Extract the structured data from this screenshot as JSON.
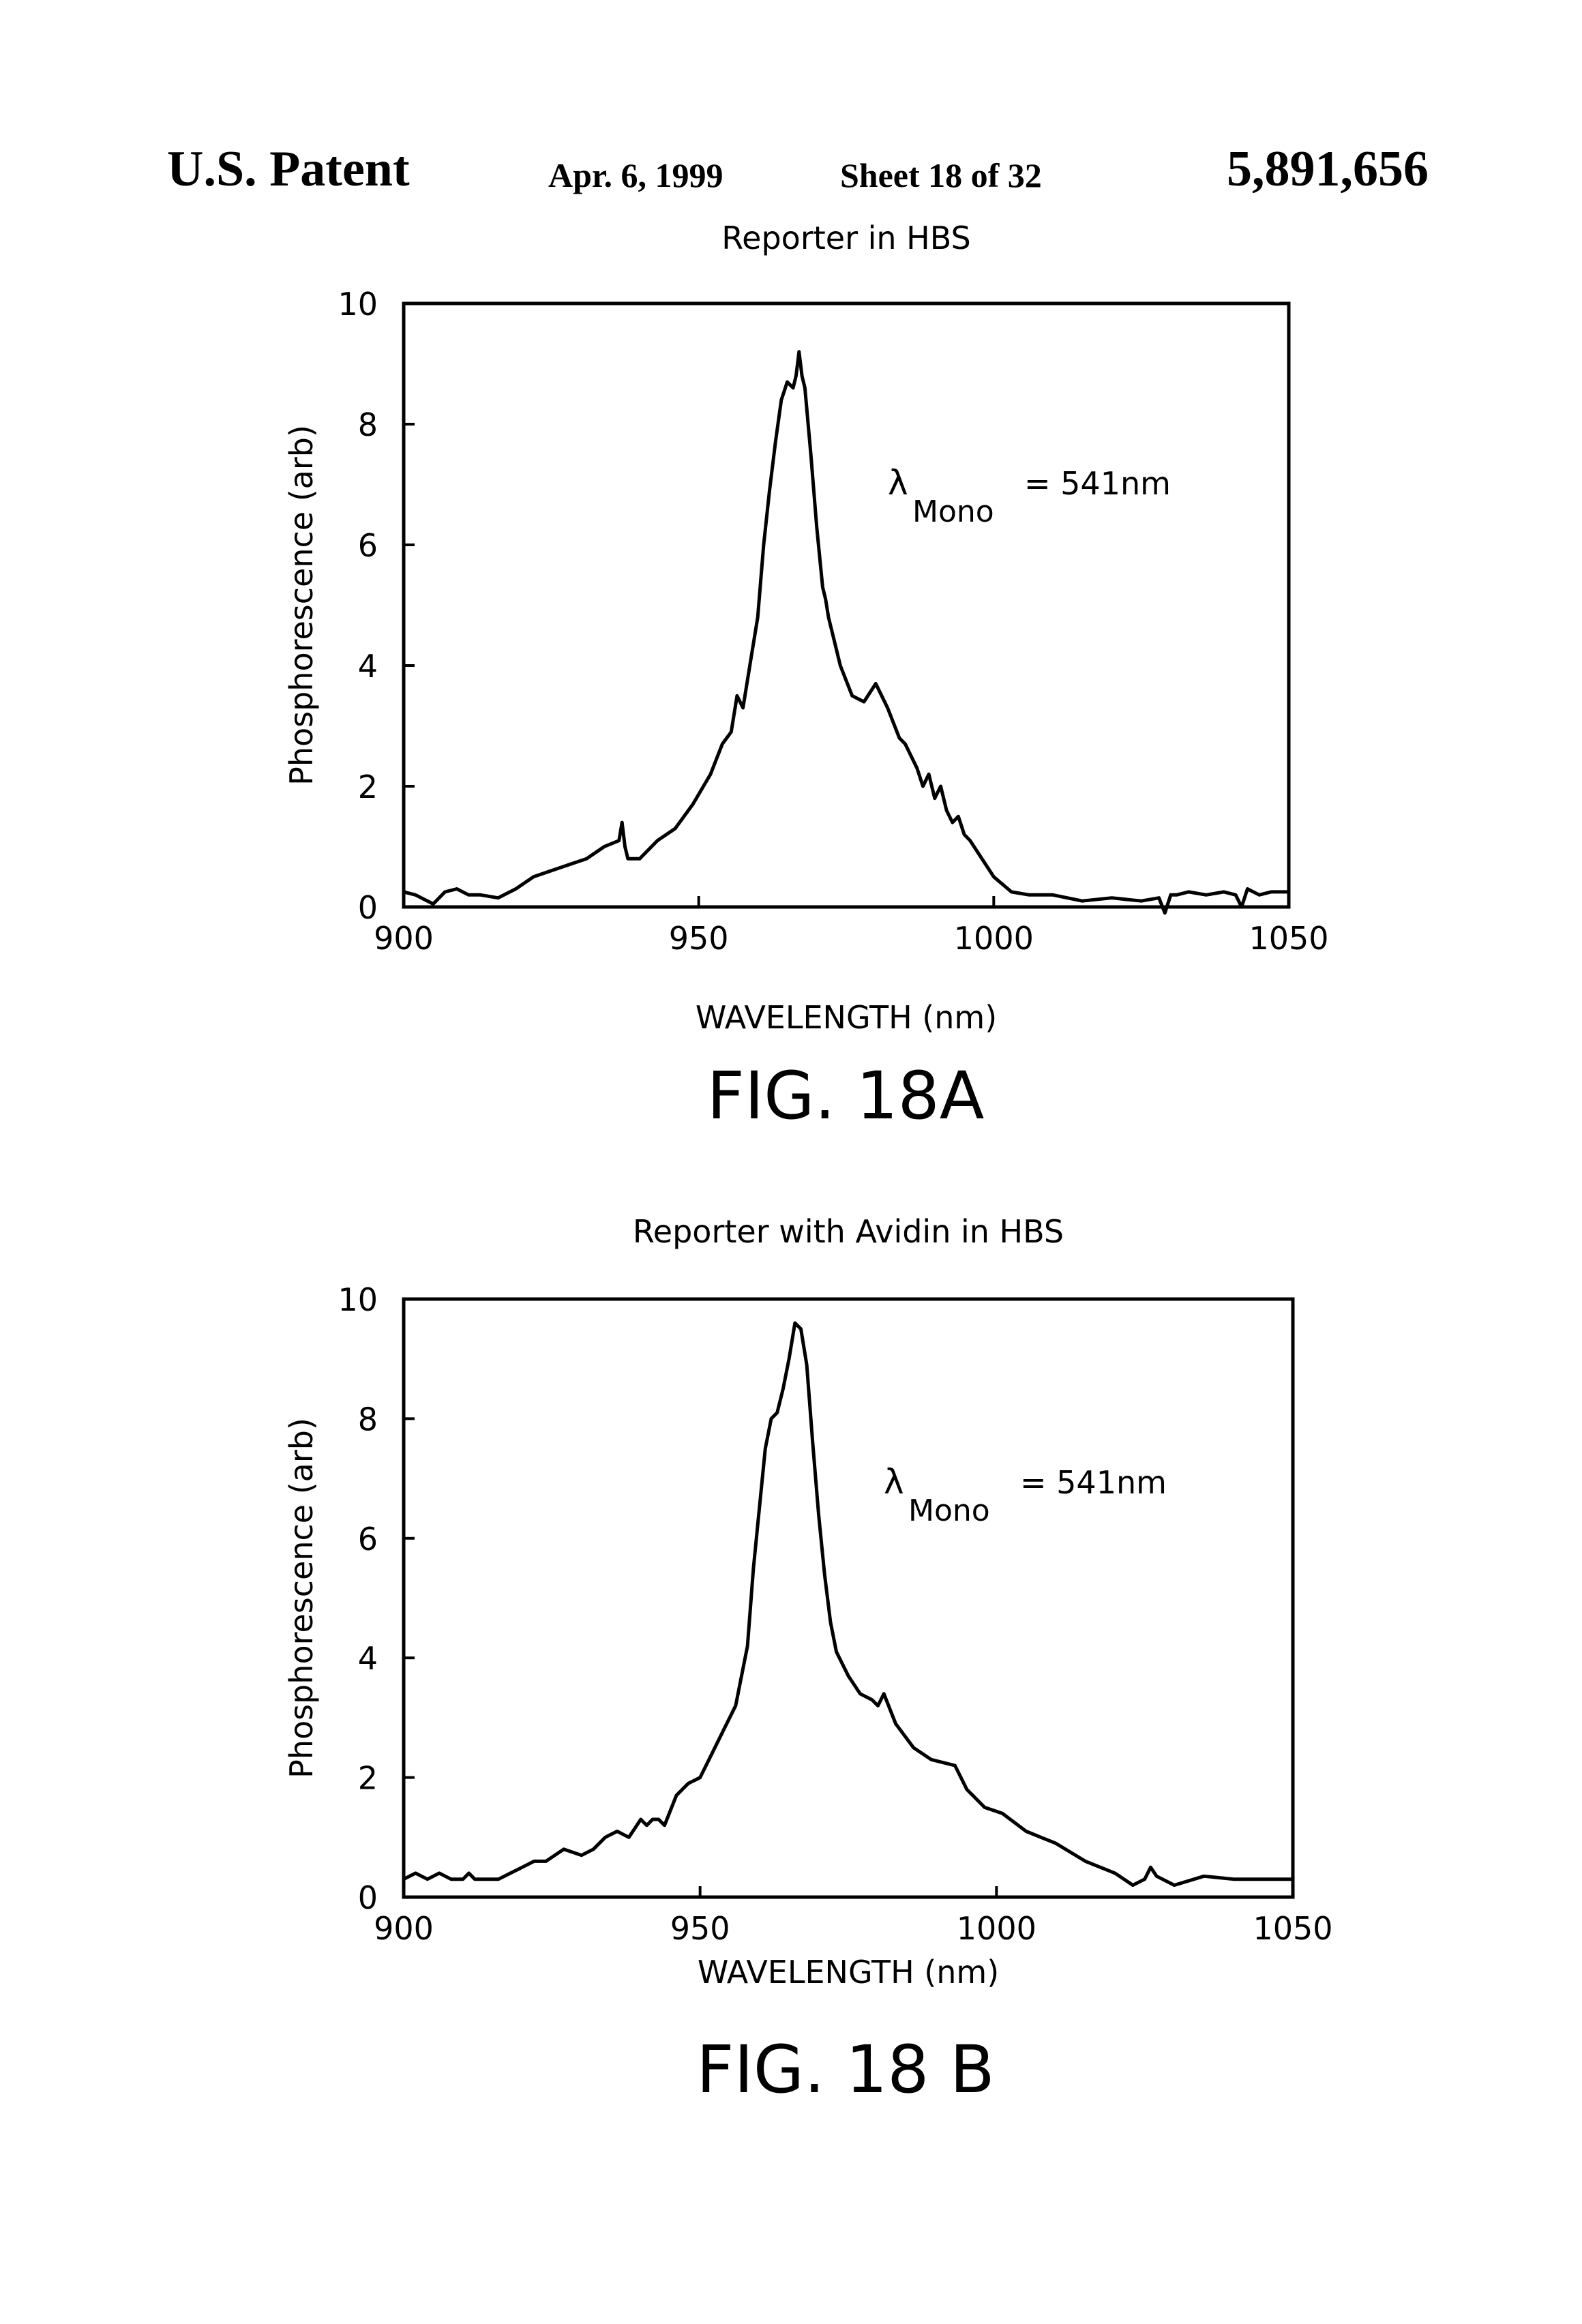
{
  "header": {
    "left": "U.S. Patent",
    "date": "Apr. 6, 1999",
    "sheet": "Sheet 18 of 32",
    "number": "5,891,656"
  },
  "chart_data": [
    {
      "type": "line",
      "title": "Reporter in HBS",
      "xlabel": "WAVELENGTH (nm)",
      "ylabel": "Phosphorescence (arb)",
      "xlim": [
        900,
        1050
      ],
      "ylim": [
        0,
        10
      ],
      "x_ticks": [
        "900",
        "950",
        "1000",
        "1050"
      ],
      "y_ticks": [
        "0",
        "2",
        "4",
        "6",
        "8",
        "10"
      ],
      "annotation": {
        "symbol": "λ",
        "subscript": "Mono",
        "text": "= 541nm"
      },
      "caption": "FIG. 18A",
      "series": [
        {
          "x": [
            900,
            902,
            905,
            907,
            909,
            911,
            913,
            916,
            919,
            922,
            925,
            928,
            931,
            934,
            936.5,
            937,
            937.5,
            938,
            940,
            943,
            946,
            949,
            952,
            954,
            955.5,
            956.5,
            957.5,
            958,
            959,
            960,
            961,
            962,
            963,
            964,
            965,
            966,
            966.5,
            967,
            967.5,
            968,
            969,
            970,
            971,
            971.5,
            972,
            973,
            974,
            976,
            978,
            980,
            982,
            984,
            985,
            987,
            988,
            989,
            990,
            991,
            992,
            993,
            994,
            995,
            996,
            998,
            1000,
            1003,
            1006,
            1010,
            1015,
            1020,
            1025,
            1028,
            1029,
            1030,
            1031,
            1033,
            1036,
            1039,
            1041,
            1042,
            1043,
            1045,
            1047,
            1050
          ],
          "y": [
            0.25,
            0.2,
            0.05,
            0.25,
            0.3,
            0.2,
            0.2,
            0.15,
            0.3,
            0.5,
            0.6,
            0.7,
            0.8,
            1.0,
            1.1,
            1.4,
            1.0,
            0.8,
            0.8,
            1.1,
            1.3,
            1.7,
            2.2,
            2.7,
            2.9,
            3.5,
            3.3,
            3.6,
            4.2,
            4.8,
            6.0,
            6.9,
            7.7,
            8.4,
            8.7,
            8.6,
            8.8,
            9.2,
            8.8,
            8.6,
            7.5,
            6.3,
            5.3,
            5.1,
            4.8,
            4.4,
            4.0,
            3.5,
            3.4,
            3.7,
            3.3,
            2.8,
            2.7,
            2.3,
            2.0,
            2.2,
            1.8,
            2.0,
            1.6,
            1.4,
            1.5,
            1.2,
            1.1,
            0.8,
            0.5,
            0.25,
            0.2,
            0.2,
            0.1,
            0.15,
            0.1,
            0.15,
            -0.1,
            0.2,
            0.2,
            0.25,
            0.2,
            0.25,
            0.2,
            0.0,
            0.3,
            0.2,
            0.25,
            0.25
          ]
        }
      ]
    },
    {
      "type": "line",
      "title": "Reporter with Avidin in HBS",
      "xlabel": "WAVELENGTH (nm)",
      "ylabel": "Phosphorescence (arb)",
      "xlim": [
        900,
        1050
      ],
      "ylim": [
        0,
        10
      ],
      "x_ticks": [
        "900",
        "950",
        "1000",
        "1050"
      ],
      "y_ticks": [
        "0",
        "2",
        "4",
        "6",
        "8",
        "10"
      ],
      "annotation": {
        "symbol": "λ",
        "subscript": "Mono",
        "text": "= 541nm"
      },
      "caption": "FIG. 18 B",
      "series": [
        {
          "x": [
            900,
            902,
            904,
            906,
            908,
            910,
            911,
            912,
            914,
            916,
            918,
            920,
            922,
            924,
            927,
            930,
            932,
            934,
            936,
            938,
            940,
            941,
            942,
            943,
            944,
            946,
            948,
            950,
            952,
            954,
            956,
            958,
            959,
            960,
            961,
            962,
            963,
            964,
            965,
            966,
            967,
            968,
            969,
            970,
            971,
            972,
            973,
            975,
            977,
            979,
            980,
            981,
            983,
            986,
            989,
            993,
            995,
            998,
            1001,
            1005,
            1010,
            1015,
            1020,
            1023,
            1025,
            1026,
            1027,
            1030,
            1035,
            1040,
            1043,
            1046,
            1050
          ],
          "y": [
            0.3,
            0.4,
            0.3,
            0.4,
            0.3,
            0.3,
            0.4,
            0.3,
            0.3,
            0.3,
            0.4,
            0.5,
            0.6,
            0.6,
            0.8,
            0.7,
            0.8,
            1.0,
            1.1,
            1.0,
            1.3,
            1.2,
            1.3,
            1.3,
            1.2,
            1.7,
            1.9,
            2.0,
            2.4,
            2.8,
            3.2,
            4.2,
            5.5,
            6.5,
            7.5,
            8.0,
            8.1,
            8.5,
            9.0,
            9.6,
            9.5,
            8.9,
            7.6,
            6.4,
            5.4,
            4.6,
            4.1,
            3.7,
            3.4,
            3.3,
            3.2,
            3.4,
            2.9,
            2.5,
            2.3,
            2.2,
            1.8,
            1.5,
            1.4,
            1.1,
            0.9,
            0.6,
            0.4,
            0.2,
            0.3,
            0.5,
            0.35,
            0.2,
            0.35,
            0.3,
            0.3,
            0.3,
            0.3
          ]
        }
      ]
    }
  ]
}
